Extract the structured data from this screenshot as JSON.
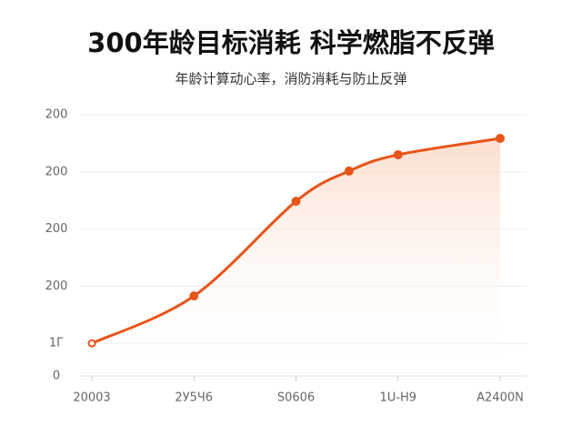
{
  "chart_data": {
    "type": "line",
    "title": "300年龄目标消耗 科学燃脂不反弹",
    "subtitle": "年龄计算动心率，消防消耗与防止反弹",
    "x": [
      0,
      1,
      2,
      2.52,
      3,
      4
    ],
    "series": [
      {
        "color": "#e8541a",
        "values": [
          40,
          98,
          214,
          251,
          271,
          291
        ]
      }
    ],
    "xlim": [
      0,
      4
    ],
    "xticks": [
      {
        "value": 0,
        "label": "20003"
      },
      {
        "value": 1,
        "label": "2У5Ч6"
      },
      {
        "value": 2,
        "label": "S0606"
      },
      {
        "value": 3,
        "label": "1U-Н9"
      },
      {
        "value": 4,
        "label": "A2400N"
      }
    ],
    "ylim": [
      0,
      320
    ],
    "yticks": [
      0,
      {
        "value": 40,
        "label": "1Г"
      },
      {
        "value": 110,
        "label": "200"
      },
      {
        "value": 180,
        "label": "200"
      },
      {
        "value": 250,
        "label": "200"
      },
      {
        "value": 320,
        "label": "200"
      }
    ],
    "grid": true
  }
}
